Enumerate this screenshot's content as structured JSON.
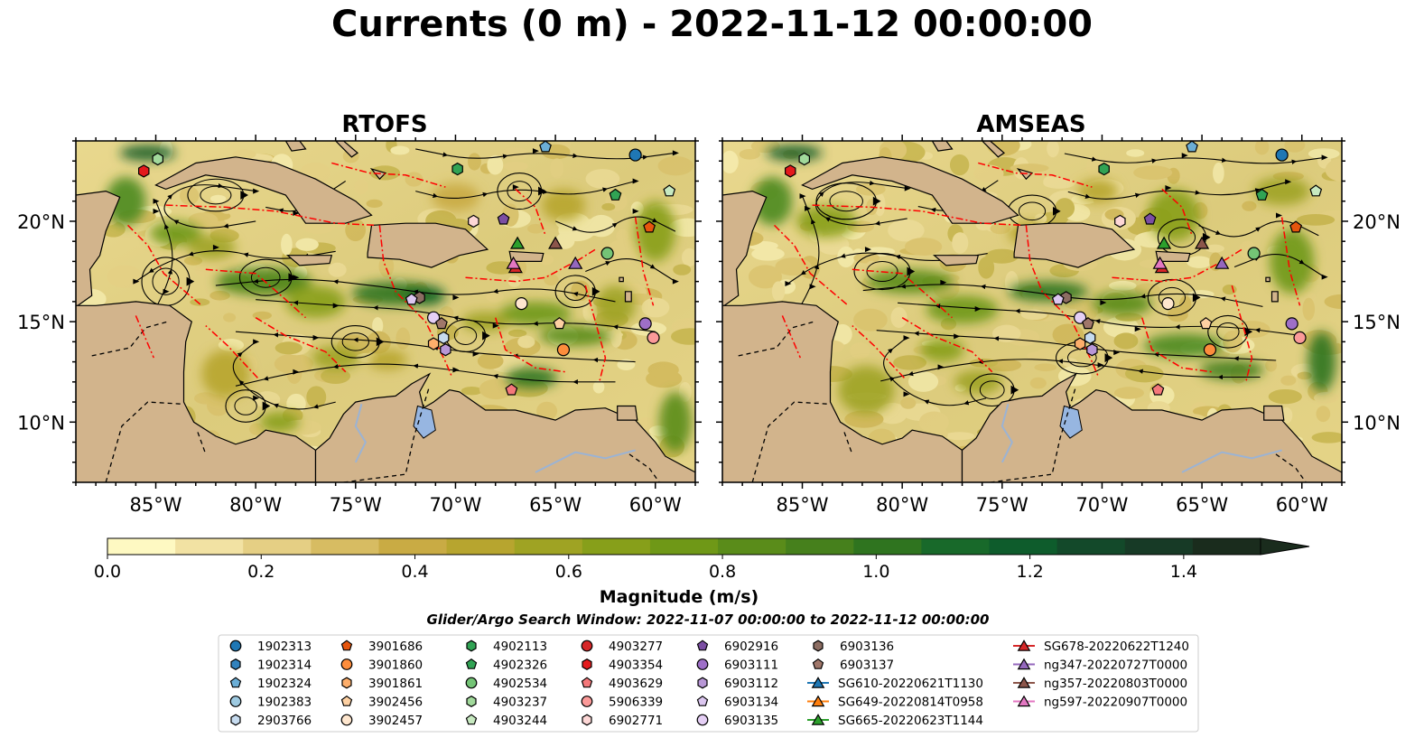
{
  "figure": {
    "title": "Currents (0 m) - 2022-11-12 00:00:00",
    "search_window": "Glider/Argo Search Window: 2022-11-07 00:00:00 to 2022-11-12 00:00:00",
    "panels": [
      {
        "title": "RTOFS"
      },
      {
        "title": "AMSEAS"
      }
    ],
    "colorbar": {
      "label": "Magnitude (m/s)",
      "ticks": [
        "0.0",
        "0.2",
        "0.4",
        "0.6",
        "0.8",
        "1.0",
        "1.2",
        "1.4"
      ],
      "colors": [
        "#fef9c2",
        "#f2e2a3",
        "#e5cf84",
        "#d7bc62",
        "#c9ab44",
        "#b7a52f",
        "#9fa323",
        "#879f1a",
        "#6f9817",
        "#5a8c1a",
        "#46801c",
        "#2f741f",
        "#18692a",
        "#0e5c2c",
        "#13492a",
        "#173a26",
        "#1a2c1d"
      ],
      "extend": "max"
    },
    "map": {
      "x_ticks": [
        "85°W",
        "80°W",
        "75°W",
        "70°W",
        "65°W",
        "60°W"
      ],
      "y_ticks": [
        "20°N",
        "15°N",
        "10°N"
      ],
      "colors": {
        "land": "#d2b48c",
        "ocean_nodata": "#97b6e1",
        "eez": "#ff0000",
        "river": "#9bb3d4"
      }
    }
  },
  "chart_data": {
    "type": "heatmap",
    "title": "Currents (0 m) - 2022-11-12 00:00:00",
    "xlim": [
      -89,
      -58
    ],
    "ylim": [
      7,
      24
    ],
    "color_range": [
      0,
      1.5
    ],
    "colorbar_label": "Magnitude (m/s)",
    "panels": [
      "RTOFS",
      "AMSEAS"
    ],
    "observations": [
      {
        "name": "1902313",
        "marker": "circle",
        "color": "#1f77b4",
        "lon": -61.0,
        "lat": 23.3
      },
      {
        "name": "2903766",
        "marker": "hexagon",
        "color": "#c6dbef",
        "lon": -70.6,
        "lat": 14.2
      },
      {
        "name": "1902324",
        "marker": "pentagon",
        "color": "#6baed6",
        "lon": -65.5,
        "lat": 23.7
      },
      {
        "name": "3901686",
        "marker": "pentagon",
        "color": "#e6550d",
        "lon": -60.3,
        "lat": 19.7
      },
      {
        "name": "3901861",
        "marker": "hexagon",
        "color": "#fdae6b",
        "lon": -71.1,
        "lat": 13.9
      },
      {
        "name": "3901860",
        "marker": "circle",
        "color": "#fd8d3c",
        "lon": -64.6,
        "lat": 13.6
      },
      {
        "name": "3902456",
        "marker": "pentagon",
        "color": "#fdd0a2",
        "lon": -64.8,
        "lat": 14.9
      },
      {
        "name": "3902457",
        "marker": "circle",
        "color": "#fee6ce",
        "lon": -66.7,
        "lat": 15.9
      },
      {
        "name": "4902113",
        "marker": "hexagon",
        "color": "#31a354",
        "lon": -69.9,
        "lat": 22.6
      },
      {
        "name": "4902326",
        "marker": "pentagon",
        "color": "#31a354",
        "lon": -62.0,
        "lat": 21.3
      },
      {
        "name": "4902534",
        "marker": "circle",
        "color": "#74c476",
        "lon": -62.4,
        "lat": 18.4
      },
      {
        "name": "4903237",
        "marker": "hexagon",
        "color": "#a1d99b",
        "lon": -84.9,
        "lat": 23.1
      },
      {
        "name": "4903244",
        "marker": "pentagon",
        "color": "#c7e9c0",
        "lon": -59.3,
        "lat": 21.5
      },
      {
        "name": "4903354",
        "marker": "hexagon",
        "color": "#e41a1c",
        "lon": -85.6,
        "lat": 22.5
      },
      {
        "name": "4903629",
        "marker": "pentagon",
        "color": "#f4787a",
        "lon": -67.2,
        "lat": 11.6
      },
      {
        "name": "5906339",
        "marker": "circle",
        "color": "#fb9a99",
        "lon": -60.1,
        "lat": 14.2
      },
      {
        "name": "6902771",
        "marker": "hexagon",
        "color": "#fdd7d6",
        "lon": -69.1,
        "lat": 20.0
      },
      {
        "name": "6902916",
        "marker": "pentagon",
        "color": "#7b4ea3",
        "lon": -67.6,
        "lat": 20.1
      },
      {
        "name": "6903111",
        "marker": "circle",
        "color": "#9e6fc8",
        "lon": -60.5,
        "lat": 14.9
      },
      {
        "name": "6903112",
        "marker": "hexagon",
        "color": "#b897d6",
        "lon": -70.5,
        "lat": 13.6
      },
      {
        "name": "6903135",
        "marker": "circle",
        "color": "#e5cff5",
        "lon": -71.1,
        "lat": 15.2
      },
      {
        "name": "6903136",
        "marker": "hexagon",
        "color": "#8c6d62",
        "lon": -71.8,
        "lat": 16.2
      },
      {
        "name": "6903137",
        "marker": "pentagon",
        "color": "#a0776a",
        "lon": -70.7,
        "lat": 14.9
      },
      {
        "name": "6903134",
        "marker": "pentagon",
        "color": "#dcc7f0",
        "lon": -72.2,
        "lat": 16.1
      },
      {
        "name": "SG665-20220623T1144",
        "marker": "triangle",
        "color": "#2ca02c",
        "lon": -66.9,
        "lat": 18.9
      },
      {
        "name": "SG678-20220622T1240",
        "marker": "triangle",
        "color": "#d62728",
        "lon": -67.0,
        "lat": 17.7
      },
      {
        "name": "ng347-20220727T0000",
        "marker": "triangle",
        "color": "#9467bd",
        "lon": -64.0,
        "lat": 17.9
      },
      {
        "name": "ng357-20220803T0000",
        "marker": "triangle",
        "color": "#8c564b",
        "lon": -65.0,
        "lat": 18.9
      },
      {
        "name": "ng597-20220907T0000",
        "marker": "triangle",
        "color": "#e377c2",
        "lon": -67.1,
        "lat": 17.9
      }
    ]
  },
  "legend": {
    "columns": [
      [
        {
          "label": "1902313",
          "marker": "circle",
          "color": "#1f77b4"
        },
        {
          "label": "1902314",
          "marker": "hexagon",
          "color": "#3182bd"
        },
        {
          "label": "1902324",
          "marker": "pentagon",
          "color": "#6baed6"
        },
        {
          "label": "1902383",
          "marker": "circle",
          "color": "#9ecae1"
        },
        {
          "label": "2903766",
          "marker": "hexagon",
          "color": "#c6dbef"
        }
      ],
      [
        {
          "label": "3901686",
          "marker": "pentagon",
          "color": "#e6550d"
        },
        {
          "label": "3901860",
          "marker": "circle",
          "color": "#fd8d3c"
        },
        {
          "label": "3901861",
          "marker": "hexagon",
          "color": "#fdae6b"
        },
        {
          "label": "3902456",
          "marker": "pentagon",
          "color": "#fdd0a2"
        },
        {
          "label": "3902457",
          "marker": "circle",
          "color": "#fee6ce"
        }
      ],
      [
        {
          "label": "4902113",
          "marker": "hexagon",
          "color": "#31a354"
        },
        {
          "label": "4902326",
          "marker": "pentagon",
          "color": "#31a354"
        },
        {
          "label": "4902534",
          "marker": "circle",
          "color": "#74c476"
        },
        {
          "label": "4903237",
          "marker": "hexagon",
          "color": "#a1d99b"
        },
        {
          "label": "4903244",
          "marker": "pentagon",
          "color": "#c7e9c0"
        }
      ],
      [
        {
          "label": "4903277",
          "marker": "circle",
          "color": "#d62728"
        },
        {
          "label": "4903354",
          "marker": "hexagon",
          "color": "#e41a1c"
        },
        {
          "label": "4903629",
          "marker": "pentagon",
          "color": "#f4787a"
        },
        {
          "label": "5906339",
          "marker": "circle",
          "color": "#fb9a99"
        },
        {
          "label": "6902771",
          "marker": "hexagon",
          "color": "#fdd7d6"
        }
      ],
      [
        {
          "label": "6902916",
          "marker": "pentagon",
          "color": "#7b4ea3"
        },
        {
          "label": "6903111",
          "marker": "circle",
          "color": "#9e6fc8"
        },
        {
          "label": "6903112",
          "marker": "hexagon",
          "color": "#b897d6"
        },
        {
          "label": "6903134",
          "marker": "pentagon",
          "color": "#dcc7f0"
        },
        {
          "label": "6903135",
          "marker": "circle",
          "color": "#e5cff5"
        }
      ],
      [
        {
          "label": "6903136",
          "marker": "hexagon",
          "color": "#8c6d62"
        },
        {
          "label": "6903137",
          "marker": "pentagon",
          "color": "#a0776a"
        },
        {
          "label": "SG610-20220621T1130",
          "marker": "triangle",
          "color": "#1f77b4",
          "line": true
        },
        {
          "label": "SG649-20220814T0958",
          "marker": "triangle",
          "color": "#ff7f0e",
          "line": true
        },
        {
          "label": "SG665-20220623T1144",
          "marker": "triangle",
          "color": "#2ca02c",
          "line": true
        }
      ],
      [
        {
          "label": "SG678-20220622T1240",
          "marker": "triangle",
          "color": "#d62728",
          "line": true
        },
        {
          "label": "ng347-20220727T0000",
          "marker": "triangle",
          "color": "#9467bd",
          "line": true
        },
        {
          "label": "ng357-20220803T0000",
          "marker": "triangle",
          "color": "#8c564b",
          "line": true
        },
        {
          "label": "ng597-20220907T0000",
          "marker": "triangle",
          "color": "#e377c2",
          "line": true
        }
      ]
    ]
  }
}
